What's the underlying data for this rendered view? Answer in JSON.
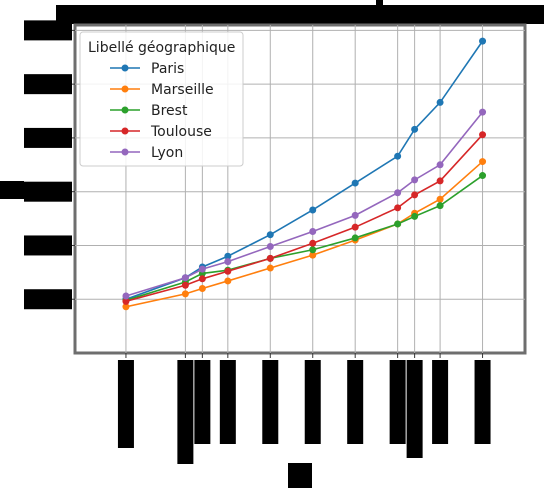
{
  "chart_data": {
    "type": "line",
    "title": "",
    "xlabel": "",
    "ylabel": "",
    "x": [
      1968,
      1975,
      1977,
      1980,
      1985,
      1990,
      1995,
      2000,
      2002,
      2005,
      2010
    ],
    "xlim": [
      1962,
      2015
    ],
    "ylim": [
      0.5,
      3.55
    ],
    "grid": true,
    "legend": {
      "title": "Libellé géographique",
      "placement": "top-left"
    },
    "series": [
      {
        "name": "Paris",
        "color": "#1f77b4",
        "values": [
          1.0,
          1.2,
          1.3,
          1.4,
          1.6,
          1.83,
          2.08,
          2.33,
          2.58,
          2.83,
          3.4
        ]
      },
      {
        "name": "Marseille",
        "color": "#ff7f0e",
        "values": [
          0.93,
          1.05,
          1.1,
          1.17,
          1.29,
          1.41,
          1.55,
          1.7,
          1.8,
          1.93,
          2.28
        ]
      },
      {
        "name": "Brest",
        "color": "#2ca02c",
        "values": [
          0.99,
          1.16,
          1.24,
          1.27,
          1.38,
          1.46,
          1.57,
          1.7,
          1.77,
          1.87,
          2.15
        ]
      },
      {
        "name": "Toulouse",
        "color": "#d62728",
        "values": [
          0.98,
          1.13,
          1.19,
          1.26,
          1.38,
          1.52,
          1.67,
          1.85,
          1.97,
          2.1,
          2.53
        ]
      },
      {
        "name": "Lyon",
        "color": "#9467bd",
        "values": [
          1.03,
          1.2,
          1.28,
          1.35,
          1.49,
          1.63,
          1.78,
          1.99,
          2.11,
          2.25,
          2.74
        ]
      }
    ]
  }
}
